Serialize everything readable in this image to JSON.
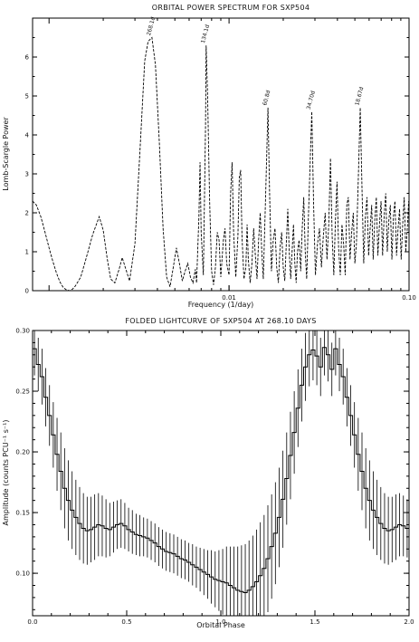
{
  "chart_data": [
    {
      "type": "line",
      "title": "ORBITAL POWER SPECTRUM FOR SXP504",
      "xlabel": "Frequency (1/day)",
      "ylabel": "Lomb-Scargle Power",
      "xscale": "log",
      "xlim": [
        0.00081,
        0.1
      ],
      "ylim": [
        0,
        7
      ],
      "grid": false,
      "line_style": "dashed",
      "xticks": [
        {
          "value": 0.01,
          "label": "0.01"
        },
        {
          "value": 0.1,
          "label": "0.10"
        }
      ],
      "yticks": [
        {
          "value": 0,
          "label": "0"
        },
        {
          "value": 1,
          "label": "1"
        },
        {
          "value": 2,
          "label": "2"
        },
        {
          "value": 3,
          "label": "3"
        },
        {
          "value": 4,
          "label": "4"
        },
        {
          "value": 5,
          "label": "5"
        },
        {
          "value": 6,
          "label": "6"
        }
      ],
      "annotations": [
        {
          "text": "268.1d",
          "x": 0.00373,
          "y": 6.5
        },
        {
          "text": "134.1d",
          "x": 0.00746,
          "y": 6.3
        },
        {
          "text": "60.8d",
          "x": 0.01645,
          "y": 4.7
        },
        {
          "text": "34.70d",
          "x": 0.02882,
          "y": 4.6
        },
        {
          "text": "18.67d",
          "x": 0.05356,
          "y": 4.7
        }
      ],
      "series": [
        {
          "points": [
            [
              0.00081,
              2.3
            ],
            [
              0.00085,
              2.2
            ],
            [
              0.0009,
              1.9
            ],
            [
              0.00095,
              1.5
            ],
            [
              0.001,
              1.1
            ],
            [
              0.00105,
              0.75
            ],
            [
              0.0011,
              0.45
            ],
            [
              0.00115,
              0.22
            ],
            [
              0.0012,
              0.08
            ],
            [
              0.00125,
              0.02
            ],
            [
              0.0013,
              0.0
            ],
            [
              0.00135,
              0.04
            ],
            [
              0.0014,
              0.12
            ],
            [
              0.0015,
              0.35
            ],
            [
              0.0016,
              0.8
            ],
            [
              0.00175,
              1.45
            ],
            [
              0.0019,
              1.9
            ],
            [
              0.002,
              1.55
            ],
            [
              0.0021,
              0.85
            ],
            [
              0.0022,
              0.3
            ],
            [
              0.00232,
              0.2
            ],
            [
              0.00245,
              0.55
            ],
            [
              0.00255,
              0.85
            ],
            [
              0.00265,
              0.6
            ],
            [
              0.0028,
              0.25
            ],
            [
              0.003,
              1.2
            ],
            [
              0.0032,
              3.6
            ],
            [
              0.0034,
              5.9
            ],
            [
              0.00355,
              6.4
            ],
            [
              0.00373,
              6.5
            ],
            [
              0.0039,
              5.8
            ],
            [
              0.0041,
              3.8
            ],
            [
              0.0043,
              1.6
            ],
            [
              0.0045,
              0.35
            ],
            [
              0.0047,
              0.1
            ],
            [
              0.0049,
              0.6
            ],
            [
              0.0051,
              1.1
            ],
            [
              0.0053,
              0.7
            ],
            [
              0.0055,
              0.25
            ],
            [
              0.0057,
              0.5
            ],
            [
              0.0059,
              0.7
            ],
            [
              0.0061,
              0.35
            ],
            [
              0.0063,
              0.2
            ],
            [
              0.0065,
              0.55
            ],
            [
              0.0066,
              0.2
            ],
            [
              0.0068,
              1.9
            ],
            [
              0.0069,
              3.3
            ],
            [
              0.007,
              1.5
            ],
            [
              0.0072,
              0.4
            ],
            [
              0.0074,
              4.2
            ],
            [
              0.00746,
              6.3
            ],
            [
              0.0076,
              5.0
            ],
            [
              0.0078,
              2.3
            ],
            [
              0.008,
              0.5
            ],
            [
              0.0082,
              0.15
            ],
            [
              0.0084,
              0.6
            ],
            [
              0.0086,
              1.5
            ],
            [
              0.0088,
              1.3
            ],
            [
              0.009,
              0.35
            ],
            [
              0.0093,
              1.3
            ],
            [
              0.0095,
              1.6
            ],
            [
              0.0097,
              0.7
            ],
            [
              0.01,
              0.4
            ],
            [
              0.0102,
              2.5
            ],
            [
              0.0104,
              3.3
            ],
            [
              0.0106,
              1.5
            ],
            [
              0.0109,
              0.35
            ],
            [
              0.0112,
              1.4
            ],
            [
              0.0114,
              2.9
            ],
            [
              0.0116,
              3.1
            ],
            [
              0.0118,
              1.4
            ],
            [
              0.0121,
              0.3
            ],
            [
              0.0124,
              0.6
            ],
            [
              0.0126,
              1.7
            ],
            [
              0.0128,
              0.8
            ],
            [
              0.0131,
              0.2
            ],
            [
              0.0134,
              0.7
            ],
            [
              0.0137,
              1.6
            ],
            [
              0.014,
              0.9
            ],
            [
              0.0143,
              0.3
            ],
            [
              0.0146,
              1.3
            ],
            [
              0.0149,
              2.0
            ],
            [
              0.0152,
              1.0
            ],
            [
              0.0155,
              0.3
            ],
            [
              0.016,
              2.6
            ],
            [
              0.01645,
              4.7
            ],
            [
              0.0168,
              2.5
            ],
            [
              0.0172,
              0.5
            ],
            [
              0.0176,
              1.3
            ],
            [
              0.018,
              1.6
            ],
            [
              0.0184,
              0.6
            ],
            [
              0.0188,
              0.2
            ],
            [
              0.0192,
              1.1
            ],
            [
              0.0196,
              1.5
            ],
            [
              0.02,
              0.6
            ],
            [
              0.0204,
              0.25
            ],
            [
              0.0208,
              1.2
            ],
            [
              0.0212,
              2.1
            ],
            [
              0.0216,
              1.0
            ],
            [
              0.022,
              0.3
            ],
            [
              0.0224,
              1.0
            ],
            [
              0.0228,
              1.7
            ],
            [
              0.0232,
              0.7
            ],
            [
              0.0236,
              0.2
            ],
            [
              0.024,
              1.0
            ],
            [
              0.0245,
              1.3
            ],
            [
              0.025,
              0.5
            ],
            [
              0.0255,
              1.6
            ],
            [
              0.026,
              2.4
            ],
            [
              0.0265,
              1.0
            ],
            [
              0.027,
              0.3
            ],
            [
              0.0276,
              1.9
            ],
            [
              0.02882,
              4.6
            ],
            [
              0.0295,
              2.2
            ],
            [
              0.0302,
              0.4
            ],
            [
              0.031,
              1.2
            ],
            [
              0.0318,
              1.6
            ],
            [
              0.0326,
              0.6
            ],
            [
              0.0334,
              1.4
            ],
            [
              0.0342,
              2.0
            ],
            [
              0.035,
              0.8
            ],
            [
              0.0358,
              1.7
            ],
            [
              0.0366,
              3.4
            ],
            [
              0.0374,
              1.4
            ],
            [
              0.0382,
              0.4
            ],
            [
              0.039,
              1.8
            ],
            [
              0.0398,
              2.8
            ],
            [
              0.0406,
              1.1
            ],
            [
              0.0415,
              0.4
            ],
            [
              0.0424,
              1.7
            ],
            [
              0.0433,
              1.2
            ],
            [
              0.0442,
              0.4
            ],
            [
              0.0451,
              2.2
            ],
            [
              0.046,
              2.4
            ],
            [
              0.047,
              0.8
            ],
            [
              0.048,
              1.5
            ],
            [
              0.049,
              2.0
            ],
            [
              0.05,
              0.7
            ],
            [
              0.051,
              1.2
            ],
            [
              0.0522,
              2.8
            ],
            [
              0.05356,
              4.7
            ],
            [
              0.0548,
              2.6
            ],
            [
              0.056,
              0.7
            ],
            [
              0.0572,
              1.9
            ],
            [
              0.0584,
              2.4
            ],
            [
              0.0596,
              0.9
            ],
            [
              0.0608,
              1.6
            ],
            [
              0.062,
              2.2
            ],
            [
              0.0632,
              0.8
            ],
            [
              0.0645,
              1.8
            ],
            [
              0.0658,
              2.4
            ],
            [
              0.0671,
              0.9
            ],
            [
              0.0685,
              1.7
            ],
            [
              0.0699,
              2.3
            ],
            [
              0.0713,
              0.9
            ],
            [
              0.0727,
              1.9
            ],
            [
              0.0742,
              2.5
            ],
            [
              0.0757,
              1.0
            ],
            [
              0.0772,
              1.8
            ],
            [
              0.0787,
              2.2
            ],
            [
              0.0803,
              0.8
            ],
            [
              0.0819,
              1.9
            ],
            [
              0.0835,
              2.3
            ],
            [
              0.0852,
              0.9
            ],
            [
              0.0869,
              1.6
            ],
            [
              0.0886,
              2.1
            ],
            [
              0.0904,
              0.8
            ],
            [
              0.0922,
              1.7
            ],
            [
              0.094,
              2.4
            ],
            [
              0.0959,
              1.0
            ],
            [
              0.0978,
              1.6
            ],
            [
              0.0995,
              2.3
            ],
            [
              0.1,
              1.2
            ]
          ]
        }
      ]
    },
    {
      "type": "line",
      "title": "FOLDED LIGHTCURVE OF SXP504 AT 268.10 DAYS",
      "xlabel": "Orbital Phase",
      "ylabel": "Amplitude (counts PCU⁻¹ s⁻¹)",
      "xlim": [
        0.0,
        2.0
      ],
      "ylim": [
        0.065,
        0.3
      ],
      "grid": false,
      "style": "histogram-step with vertical error bars",
      "xticks": [
        {
          "value": 0.0,
          "label": "0.0"
        },
        {
          "value": 0.5,
          "label": "0.5"
        },
        {
          "value": 1.0,
          "label": "1.0"
        },
        {
          "value": 1.5,
          "label": "1.5"
        },
        {
          "value": 2.0,
          "label": "2.0"
        }
      ],
      "yticks": [
        {
          "value": 0.1,
          "label": "0.10"
        },
        {
          "value": 0.15,
          "label": "0.15"
        },
        {
          "value": 0.2,
          "label": "0.20"
        },
        {
          "value": 0.25,
          "label": "0.25"
        },
        {
          "value": 0.3,
          "label": "0.30"
        }
      ],
      "bin_width": 0.02,
      "values": [
        0.285,
        0.272,
        0.262,
        0.245,
        0.23,
        0.214,
        0.198,
        0.184,
        0.17,
        0.16,
        0.152,
        0.146,
        0.141,
        0.137,
        0.135,
        0.136,
        0.138,
        0.14,
        0.139,
        0.137,
        0.136,
        0.138,
        0.14,
        0.141,
        0.139,
        0.136,
        0.134,
        0.132,
        0.131,
        0.13,
        0.129,
        0.127,
        0.125,
        0.122,
        0.12,
        0.118,
        0.117,
        0.116,
        0.114,
        0.112,
        0.111,
        0.109,
        0.107,
        0.105,
        0.103,
        0.101,
        0.099,
        0.097,
        0.095,
        0.094,
        0.093,
        0.092,
        0.09,
        0.088,
        0.086,
        0.085,
        0.084,
        0.086,
        0.089,
        0.093,
        0.098,
        0.104,
        0.112,
        0.122,
        0.133,
        0.146,
        0.161,
        0.178,
        0.197,
        0.216,
        0.236,
        0.255,
        0.27,
        0.28,
        0.284,
        0.279,
        0.27,
        0.286,
        0.28,
        0.268,
        0.285,
        0.272,
        0.262,
        0.245,
        0.23,
        0.214,
        0.198,
        0.184,
        0.17,
        0.16,
        0.152,
        0.146,
        0.141,
        0.137,
        0.135,
        0.136,
        0.138,
        0.14,
        0.139,
        0.137,
        0.136,
        0.138,
        0.14,
        0.141,
        0.139,
        0.136,
        0.134,
        0.132,
        0.131,
        0.13,
        0.129,
        0.127,
        0.125,
        0.122,
        0.12,
        0.118,
        0.117,
        0.116,
        0.114,
        0.112,
        0.111,
        0.109,
        0.107,
        0.105,
        0.103,
        0.101,
        0.099,
        0.097,
        0.095,
        0.094,
        0.093,
        0.092,
        0.09,
        0.088,
        0.086,
        0.085,
        0.084,
        0.086,
        0.089,
        0.093,
        0.098,
        0.104,
        0.112,
        0.122,
        0.133,
        0.146,
        0.161,
        0.178,
        0.197,
        0.216,
        0.236,
        0.255,
        0.27,
        0.28,
        0.284,
        0.279,
        0.27,
        0.286,
        0.28,
        0.268
      ],
      "errors": [
        0.022,
        0.022,
        0.023,
        0.024,
        0.025,
        0.027,
        0.03,
        0.032,
        0.033,
        0.033,
        0.032,
        0.031,
        0.03,
        0.029,
        0.028,
        0.027,
        0.027,
        0.026,
        0.025,
        0.024,
        0.022,
        0.021,
        0.02,
        0.02,
        0.019,
        0.018,
        0.018,
        0.017,
        0.017,
        0.016,
        0.016,
        0.016,
        0.016,
        0.016,
        0.016,
        0.016,
        0.016,
        0.016,
        0.016,
        0.016,
        0.016,
        0.016,
        0.017,
        0.017,
        0.018,
        0.019,
        0.02,
        0.022,
        0.023,
        0.025,
        0.027,
        0.03,
        0.032,
        0.034,
        0.036,
        0.038,
        0.04,
        0.041,
        0.042,
        0.043,
        0.044,
        0.044,
        0.044,
        0.043,
        0.042,
        0.041,
        0.04,
        0.038,
        0.036,
        0.034,
        0.032,
        0.03,
        0.028,
        0.026,
        0.025,
        0.024,
        0.024,
        0.023,
        0.022,
        0.022,
        0.022,
        0.022,
        0.023,
        0.024,
        0.025,
        0.027,
        0.03,
        0.032,
        0.033,
        0.033,
        0.032,
        0.031,
        0.03,
        0.029,
        0.028,
        0.027,
        0.027,
        0.026,
        0.025,
        0.024,
        0.022,
        0.021,
        0.02,
        0.02,
        0.019,
        0.018,
        0.018,
        0.017,
        0.017,
        0.016,
        0.016,
        0.016,
        0.016,
        0.016,
        0.016,
        0.016,
        0.016,
        0.016,
        0.016,
        0.016,
        0.016,
        0.016,
        0.017,
        0.017,
        0.018,
        0.019,
        0.02,
        0.022,
        0.023,
        0.025,
        0.027,
        0.03,
        0.032,
        0.034,
        0.036,
        0.038,
        0.04,
        0.041,
        0.042,
        0.043,
        0.044,
        0.044,
        0.044,
        0.043,
        0.042,
        0.041,
        0.04,
        0.038,
        0.036,
        0.034,
        0.032,
        0.03,
        0.028,
        0.026,
        0.025,
        0.024,
        0.024,
        0.023,
        0.022,
        0.022
      ]
    }
  ]
}
